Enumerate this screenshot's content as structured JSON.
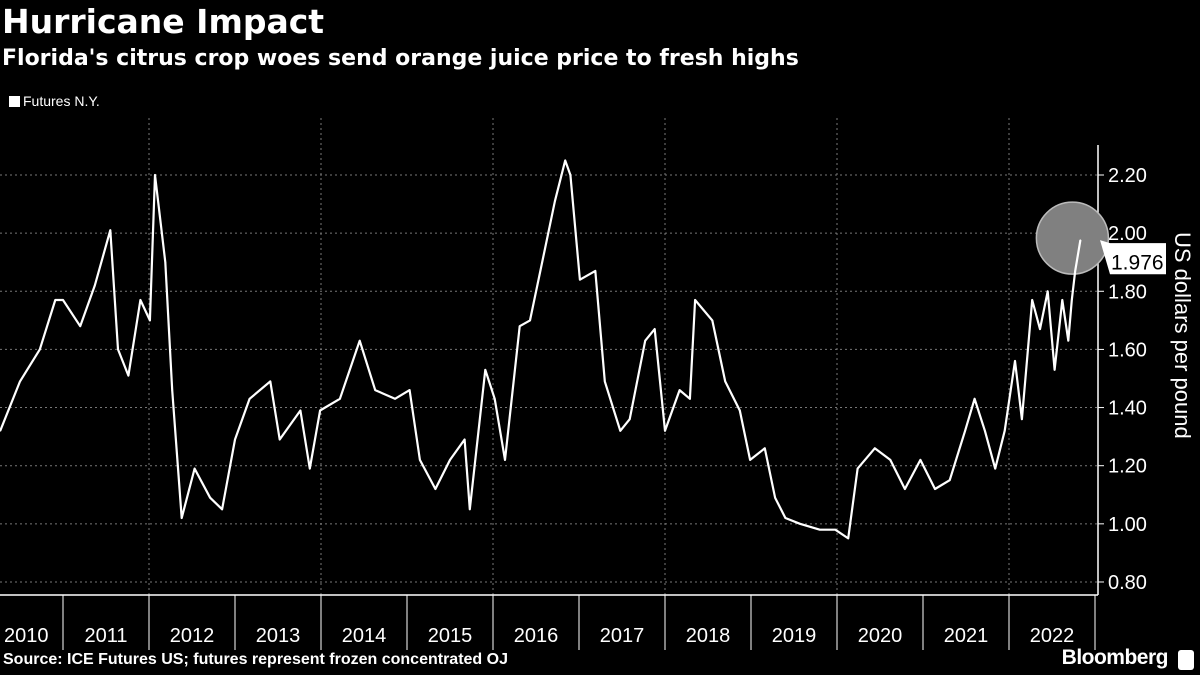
{
  "header": {
    "title": "Hurricane Impact",
    "subtitle": "Florida's citrus crop woes send orange juice price to fresh highs"
  },
  "footer": {
    "source": "Source: ICE Futures US; futures represent frozen concentrated OJ",
    "brand": "Bloomberg"
  },
  "chart_data": {
    "type": "line",
    "title": "Hurricane Impact",
    "subtitle": "Florida's citrus crop woes send orange juice price to fresh highs",
    "ylabel": "US dollars per pound",
    "xlabel": "",
    "ylim": [
      0.75,
      2.4
    ],
    "xlim": [
      2010.27,
      2022.96
    ],
    "yticks": [
      "0.80",
      "1.00",
      "1.20",
      "1.40",
      "1.60",
      "1.80",
      "2.00",
      "2.20"
    ],
    "xticks": [
      "2010",
      "2011",
      "2012",
      "2013",
      "2014",
      "2015",
      "2016",
      "2017",
      "2018",
      "2019",
      "2020",
      "2021",
      "2022"
    ],
    "y_axis_side": "right",
    "grid": true,
    "legend_placement": "top-left",
    "line_color": "#ffffff",
    "highlight_color": "#808080",
    "last_value_label": "1.976",
    "series": [
      {
        "name": "Futures N.Y.",
        "x": [
          2010.27,
          2010.5,
          2010.73,
          2010.91,
          2011.0,
          2011.2,
          2011.37,
          2011.55,
          2011.64,
          2011.76,
          2011.9,
          2012.01,
          2012.07,
          2012.19,
          2012.27,
          2012.38,
          2012.53,
          2012.71,
          2012.85,
          2013.0,
          2013.17,
          2013.41,
          2013.52,
          2013.76,
          2013.87,
          2013.99,
          2014.22,
          2014.45,
          2014.63,
          2014.86,
          2015.03,
          2015.15,
          2015.33,
          2015.5,
          2015.67,
          2015.73,
          2015.91,
          2016.02,
          2016.14,
          2016.31,
          2016.43,
          2016.6,
          2016.72,
          2016.84,
          2016.9,
          2017.01,
          2017.19,
          2017.3,
          2017.48,
          2017.59,
          2017.77,
          2017.88,
          2018.0,
          2018.17,
          2018.29,
          2018.35,
          2018.55,
          2018.7,
          2018.87,
          2018.99,
          2019.16,
          2019.28,
          2019.4,
          2019.57,
          2019.8,
          2019.98,
          2020.13,
          2020.24,
          2020.44,
          2020.62,
          2020.79,
          2020.97,
          2021.14,
          2021.31,
          2021.49,
          2021.6,
          2021.72,
          2021.84,
          2021.95,
          2022.07,
          2022.15,
          2022.27,
          2022.36,
          2022.45,
          2022.53,
          2022.62,
          2022.69,
          2022.73,
          2022.77,
          2022.83
        ],
        "values": [
          1.32,
          1.49,
          1.6,
          1.77,
          1.77,
          1.68,
          1.82,
          2.01,
          1.6,
          1.51,
          1.77,
          1.7,
          2.2,
          1.9,
          1.46,
          1.02,
          1.19,
          1.09,
          1.05,
          1.29,
          1.43,
          1.49,
          1.29,
          1.39,
          1.19,
          1.39,
          1.43,
          1.63,
          1.46,
          1.43,
          1.46,
          1.22,
          1.12,
          1.22,
          1.29,
          1.05,
          1.53,
          1.43,
          1.22,
          1.68,
          1.7,
          1.94,
          2.11,
          2.25,
          2.2,
          1.84,
          1.87,
          1.49,
          1.32,
          1.36,
          1.63,
          1.67,
          1.32,
          1.46,
          1.43,
          1.77,
          1.7,
          1.49,
          1.39,
          1.22,
          1.26,
          1.09,
          1.02,
          1.0,
          0.98,
          0.98,
          0.95,
          1.19,
          1.26,
          1.22,
          1.12,
          1.22,
          1.12,
          1.15,
          1.32,
          1.43,
          1.32,
          1.19,
          1.32,
          1.56,
          1.36,
          1.77,
          1.67,
          1.8,
          1.53,
          1.77,
          1.63,
          1.77,
          1.87,
          1.976
        ]
      }
    ]
  }
}
